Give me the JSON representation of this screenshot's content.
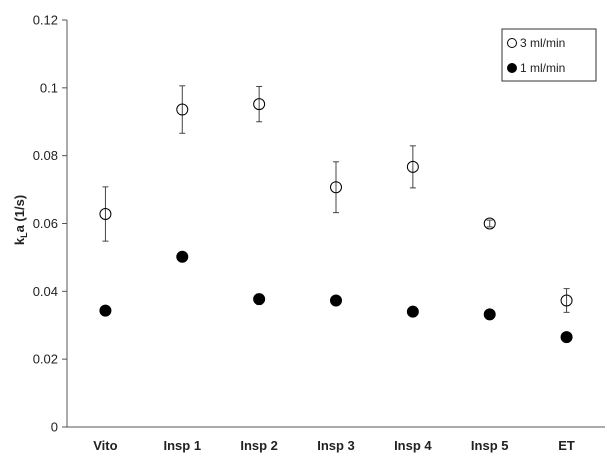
{
  "chart_data": {
    "type": "scatter",
    "categories": [
      "Vito",
      "Insp 1",
      "Insp 2",
      "Insp 3",
      "Insp 4",
      "Insp 5",
      "ET"
    ],
    "ylabel_main": "k",
    "ylabel_sub": "L",
    "ylabel_rest": "a (1/s)",
    "ylim": [
      0,
      0.12
    ],
    "yticks": [
      0,
      0.02,
      0.04,
      0.06,
      0.08,
      0.1,
      0.12
    ],
    "ytick_labels": [
      "0",
      "0.02",
      "0.04",
      "0.06",
      "0.08",
      "0.1",
      "0.12"
    ],
    "grid": false,
    "legend_position": "top-right",
    "series": [
      {
        "name": "3 ml/min",
        "marker": "open-circle",
        "values": [
          0.0628,
          0.0936,
          0.0952,
          0.0707,
          0.0767,
          0.06,
          0.0373
        ],
        "errors": [
          0.008,
          0.007,
          0.0052,
          0.0075,
          0.0062,
          0.001,
          0.0035
        ]
      },
      {
        "name": "1 ml/min",
        "marker": "filled-circle",
        "values": [
          0.0343,
          0.0502,
          0.0377,
          0.0373,
          0.034,
          0.0332,
          0.0265
        ],
        "errors": [
          0,
          0,
          0.0015,
          0,
          0,
          0,
          0
        ]
      }
    ]
  }
}
